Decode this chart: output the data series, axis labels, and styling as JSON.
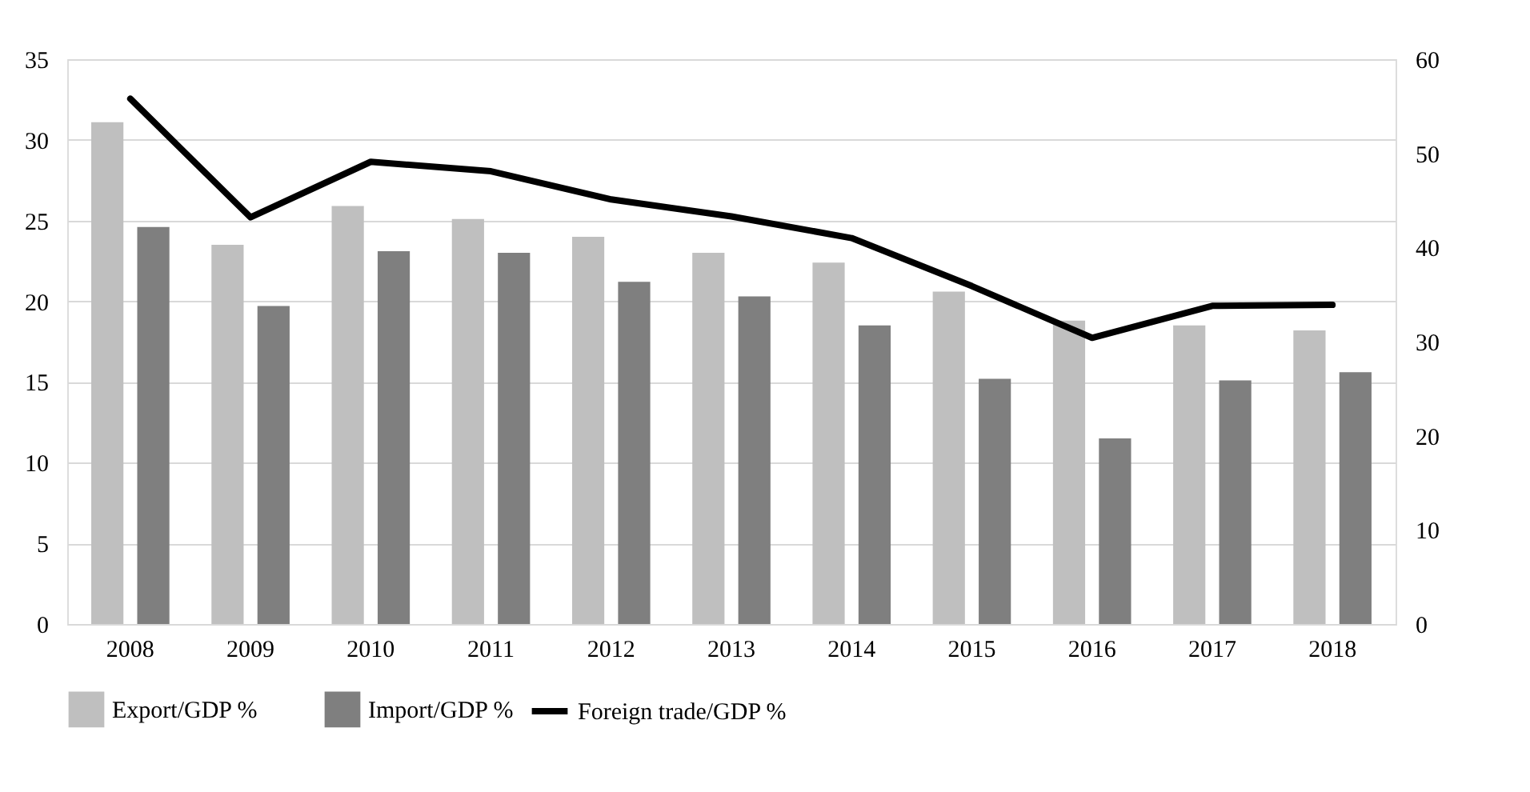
{
  "chart_data": {
    "type": "bar",
    "categories": [
      "2008",
      "2009",
      "2010",
      "2011",
      "2012",
      "2013",
      "2014",
      "2015",
      "2016",
      "2017",
      "2018"
    ],
    "series": [
      {
        "name": "Export/GDP %",
        "color": "#bfbfbf",
        "values": [
          31.1,
          23.5,
          25.9,
          25.1,
          24.0,
          23.0,
          22.4,
          20.6,
          18.8,
          18.5,
          18.2
        ]
      },
      {
        "name": "Import/GDP %",
        "color": "#7f7f7f",
        "values": [
          24.6,
          19.7,
          23.1,
          23.0,
          21.2,
          20.3,
          18.5,
          15.2,
          11.5,
          15.1,
          15.6
        ]
      },
      {
        "name": "Foreign trade/GDP %",
        "color": "#000000",
        "type": "line",
        "axis": "y2",
        "values": [
          55.8,
          43.2,
          49.1,
          48.1,
          45.1,
          43.3,
          41.0,
          35.9,
          30.4,
          33.8,
          33.9
        ]
      }
    ],
    "ylim": [
      0,
      35
    ],
    "yticks": [
      0,
      5,
      10,
      15,
      20,
      25,
      30,
      35
    ],
    "y2lim": [
      0,
      60
    ],
    "y2ticks": [
      0,
      10,
      20,
      30,
      40,
      50,
      60
    ],
    "grid": "y",
    "legend": "bottom",
    "marker": "none",
    "line_style": "solid"
  }
}
